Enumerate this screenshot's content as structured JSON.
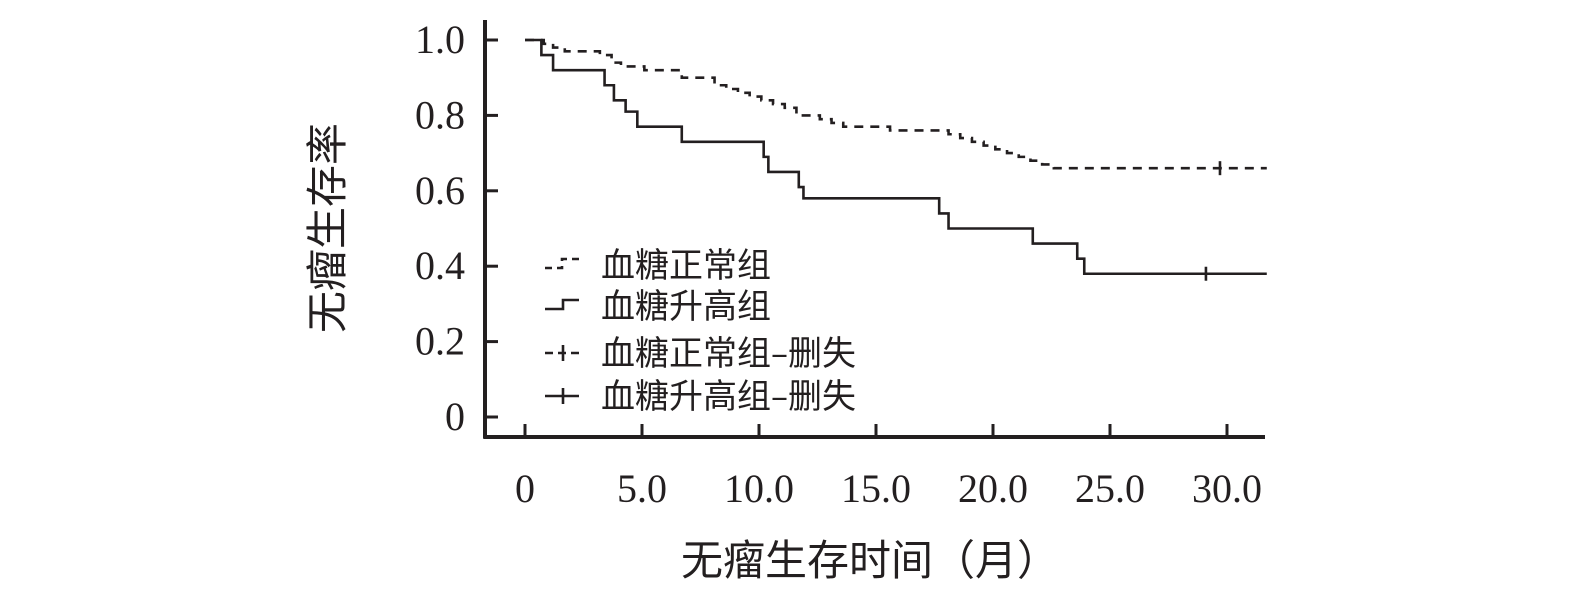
{
  "chart_data": {
    "type": "line",
    "step": true,
    "xlabel": "无瘤生存时间（月）",
    "ylabel": "无瘤生存率",
    "xlim": [
      -1.7,
      31.7
    ],
    "ylim": [
      -0.05,
      1.05
    ],
    "xticks": [
      0,
      5,
      10,
      15,
      20,
      25,
      30
    ],
    "xtick_labels": [
      "0",
      "5.0",
      "10.0",
      "15.0",
      "20.0",
      "25.0",
      "30.0"
    ],
    "yticks": [
      0,
      0.2,
      0.4,
      0.6,
      0.8,
      1.0
    ],
    "ytick_labels": [
      "0",
      "0.2",
      "0.4",
      "0.6",
      "0.8",
      "1.0"
    ],
    "legend": "inside-left",
    "series": [
      {
        "name": "血糖正常组",
        "style": "dashed",
        "x": [
          0,
          0.8,
          1.2,
          1.7,
          3.2,
          3.7,
          4.1,
          5.1,
          6.7,
          8.1,
          8.6,
          9.1,
          9.6,
          10.1,
          10.6,
          11.1,
          11.6,
          12.6,
          13.1,
          13.6,
          14.1,
          15.6,
          17.1,
          18.1,
          18.6,
          19.1,
          19.6,
          20.1,
          20.6,
          21.1,
          21.6,
          22.1,
          22.6,
          23.1,
          31.7
        ],
        "y": [
          1.0,
          0.99,
          0.98,
          0.97,
          0.96,
          0.94,
          0.93,
          0.92,
          0.9,
          0.88,
          0.87,
          0.86,
          0.85,
          0.84,
          0.83,
          0.82,
          0.8,
          0.79,
          0.78,
          0.77,
          0.77,
          0.76,
          0.76,
          0.75,
          0.74,
          0.73,
          0.72,
          0.71,
          0.7,
          0.69,
          0.68,
          0.67,
          0.66,
          0.66,
          0.66
        ]
      },
      {
        "name": "血糖升高组",
        "style": "solid",
        "x": [
          0,
          0.7,
          1.2,
          3.4,
          3.8,
          4.3,
          4.8,
          6.7,
          10.2,
          10.4,
          11.7,
          11.9,
          17.7,
          18.1,
          21.7,
          23.6,
          23.9,
          31.7
        ],
        "y": [
          1.0,
          0.96,
          0.92,
          0.88,
          0.84,
          0.81,
          0.77,
          0.73,
          0.69,
          0.65,
          0.61,
          0.58,
          0.54,
          0.5,
          0.46,
          0.42,
          0.38,
          0.38
        ]
      }
    ],
    "censored": [
      {
        "name": "血糖正常组–删失",
        "x": [
          29.7
        ],
        "y": [
          0.66
        ]
      },
      {
        "name": "血糖升高组–删失",
        "x": [
          29.1
        ],
        "y": [
          0.38
        ]
      }
    ]
  }
}
